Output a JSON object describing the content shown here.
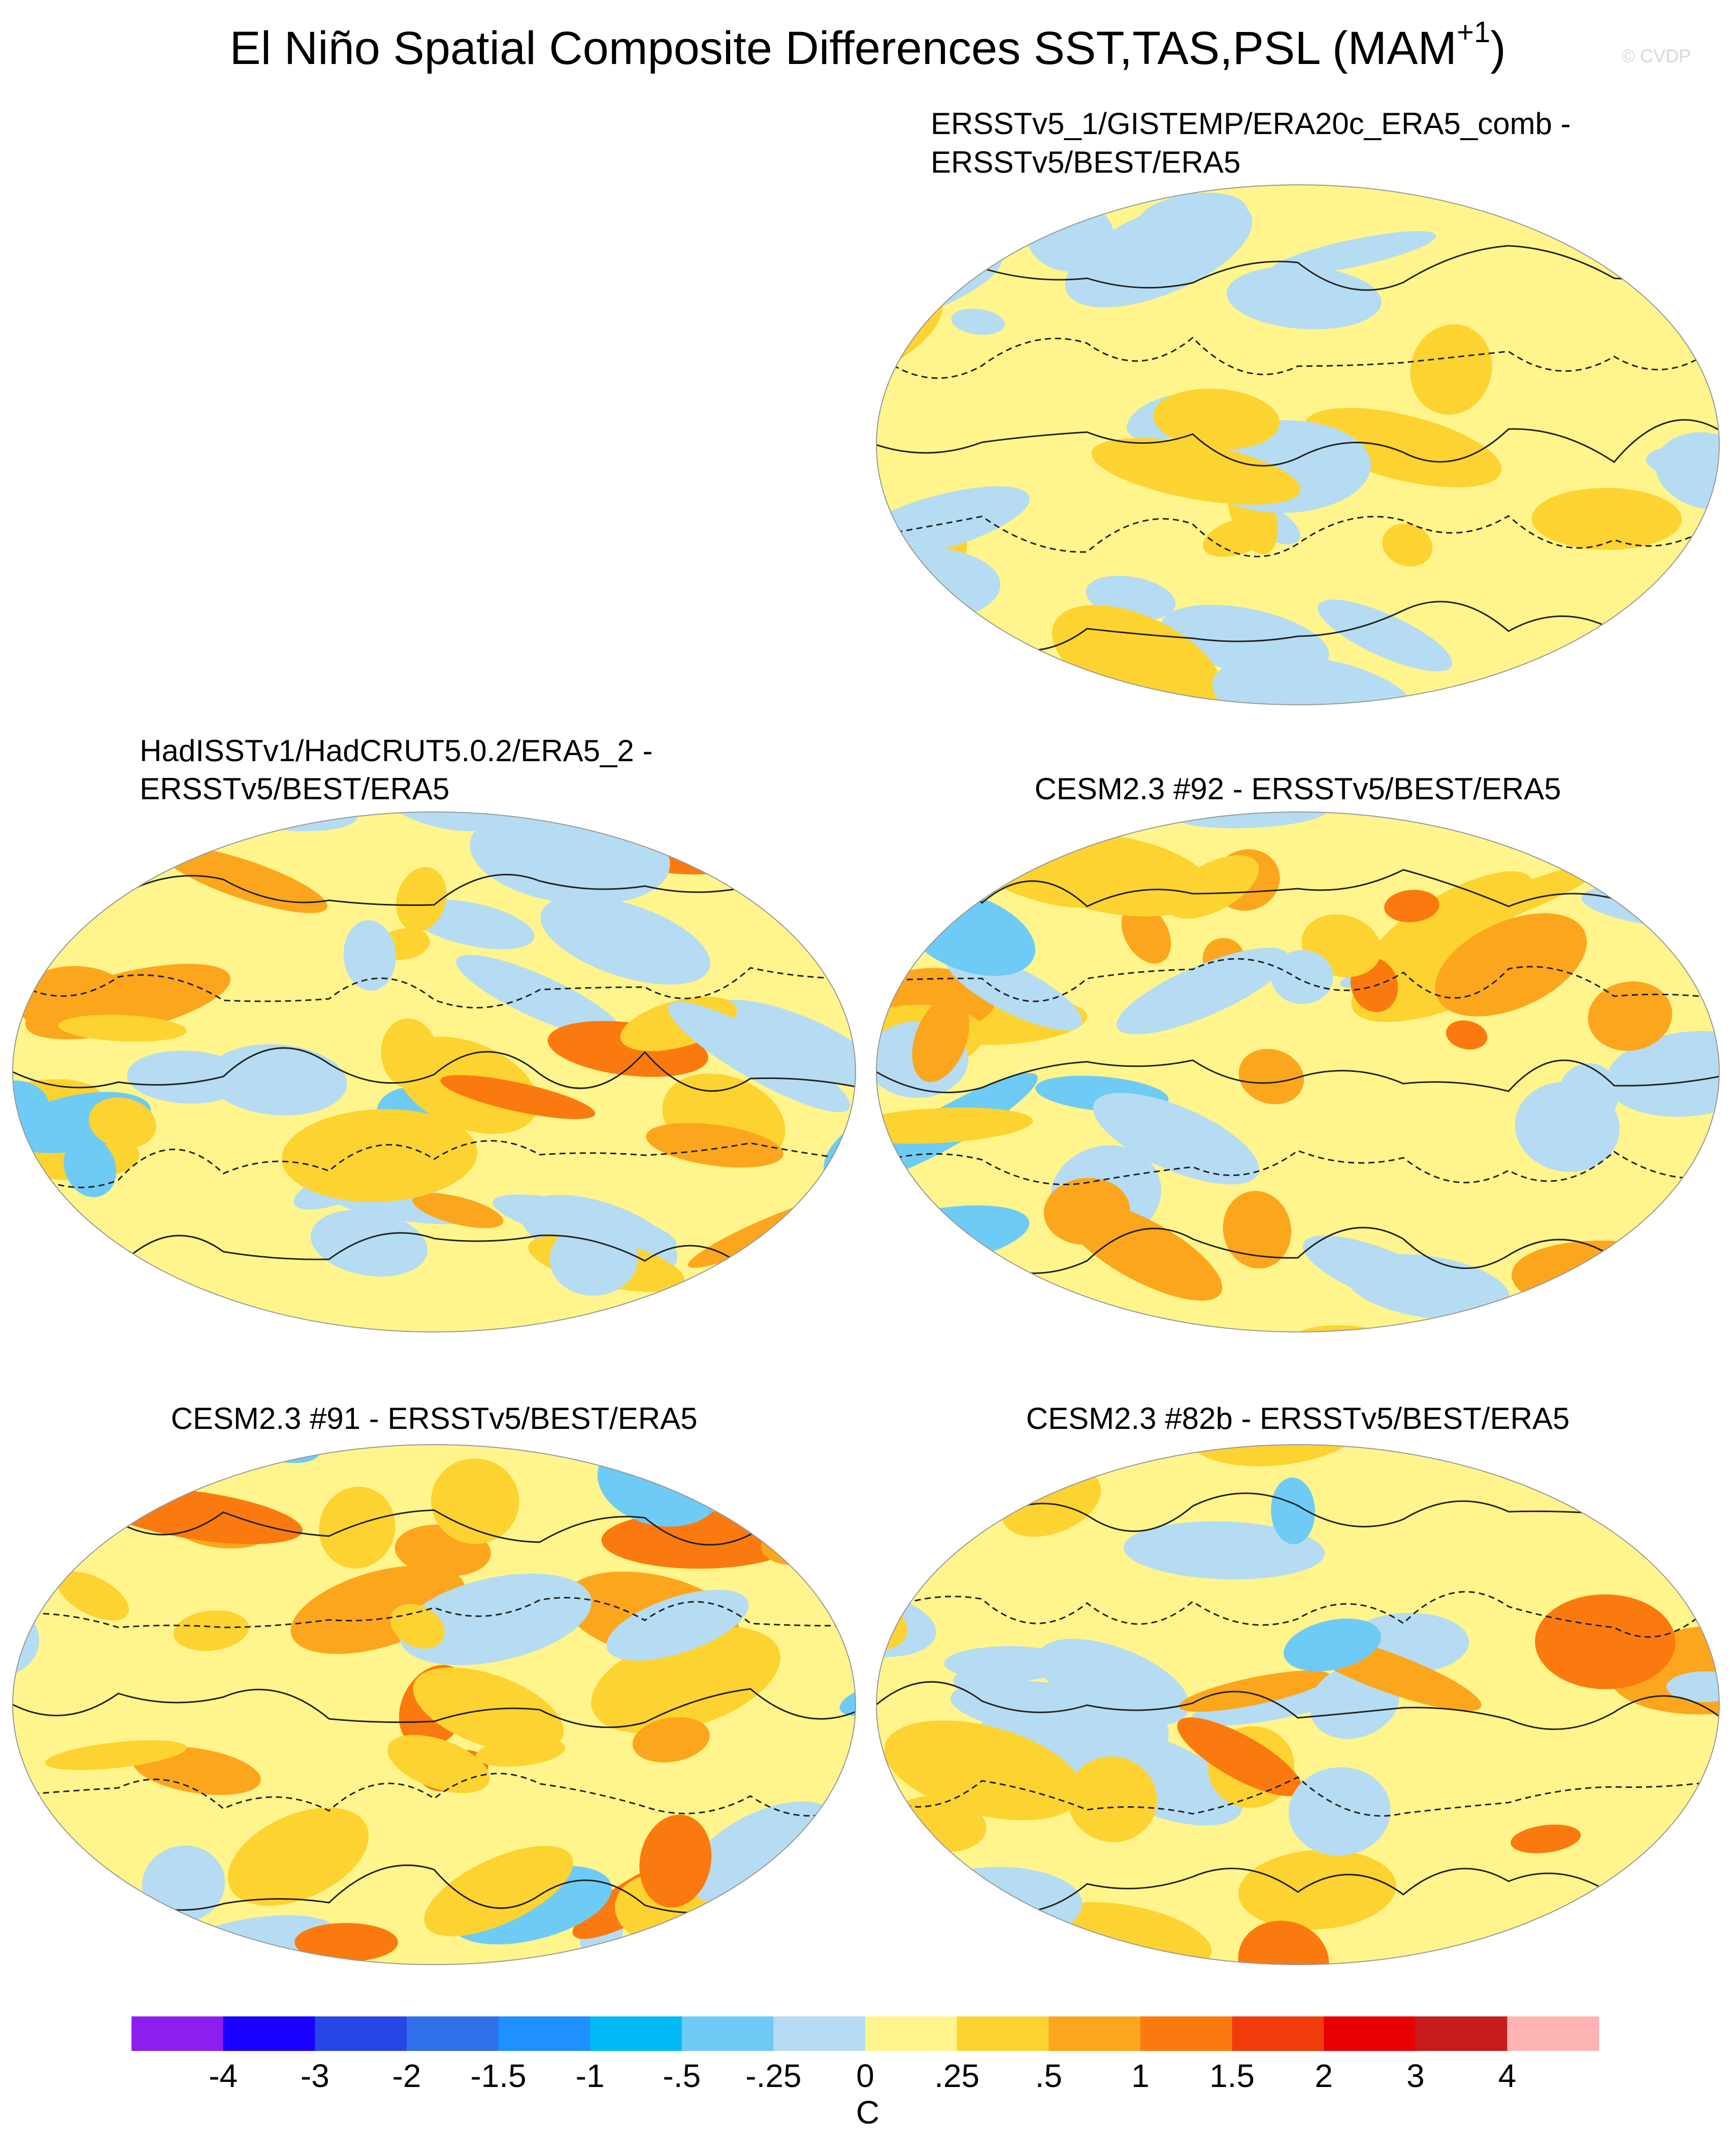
{
  "title": {
    "text": "El Niño Spatial Composite Differences SST,TAS,PSL (MAM",
    "superscript": "+1",
    "suffix": ")"
  },
  "credit": "© CVDP",
  "panels": [
    {
      "title": [
        "ERSSTv5_1/GISTEMP/ERA20c_ERA5_comb -",
        "ERSSTv5/BEST/ERA5"
      ]
    },
    {
      "title": [
        "HadISSTv1/HadCRUT5.0.2/ERA5_2 -",
        "ERSSTv5/BEST/ERA5"
      ]
    },
    {
      "title": [
        "CESM2.3 #92 - ERSSTv5/BEST/ERA5"
      ]
    },
    {
      "title": [
        "CESM2.3 #91 - ERSSTv5/BEST/ERA5"
      ]
    },
    {
      "title": [
        "CESM2.3 #82b - ERSSTv5/BEST/ERA5"
      ]
    }
  ],
  "colorbar": {
    "ticks": [
      -4,
      -3,
      -2,
      -1.5,
      -1,
      {
        "value": -0.5,
        "label": "-.5"
      },
      {
        "value": -0.25,
        "label": "-.25"
      },
      0,
      {
        "value": 0.25,
        "label": ".25"
      },
      {
        "value": 0.5,
        "label": ".5"
      },
      1,
      1.5,
      2,
      3,
      4
    ],
    "colors": [
      "#8c1ef0",
      "#1a00ff",
      "#2646e6",
      "#3070ea",
      "#1e90ff",
      "#00b9f5",
      "#6ecbf5",
      "#b5dcf2",
      "#fff58c",
      "#fdd331",
      "#fca61e",
      "#fb7a0f",
      "#f03c0a",
      "#e60000",
      "#c81c1c",
      "#ffb4b4"
    ],
    "unit": "C"
  }
}
